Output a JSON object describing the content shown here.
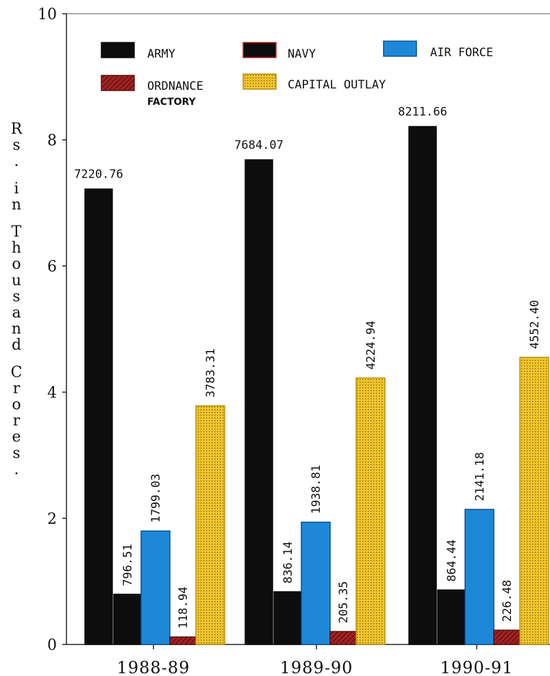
{
  "chart_data": {
    "type": "bar",
    "ylabel": "Rs. in Thousand Crores.",
    "ylim": [
      0,
      10
    ],
    "yticks": [
      "0",
      "2",
      "4",
      "6",
      "8",
      "10"
    ],
    "categories": [
      "1988-89",
      "1989-90",
      "1990-91"
    ],
    "grid": false,
    "legend_placement": "top",
    "series": [
      {
        "name": "ARMY",
        "color": "#0d0d0d",
        "pattern": "solid",
        "values": [
          7220.76,
          7684.07,
          8211.66
        ],
        "labels": [
          "7220.76",
          "7684.07",
          "8211.66"
        ]
      },
      {
        "name": "NAVY",
        "color": "#0d0d0d",
        "pattern": "solid",
        "values": [
          796.51,
          836.14,
          864.44
        ],
        "labels": [
          "796.51",
          "836.14",
          "864.44"
        ]
      },
      {
        "name": "AIR FORCE",
        "color": "#1e88d8",
        "pattern": "solid",
        "values": [
          1799.03,
          1938.81,
          2141.18
        ],
        "labels": [
          "1799.03",
          "1938.81",
          "2141.18"
        ]
      },
      {
        "name": "ORDNANCE",
        "subname": "FACTORY",
        "color": "#8b1a1a",
        "pattern": "hatch",
        "values": [
          118.94,
          205.35,
          226.48
        ],
        "labels": [
          "118.94",
          "205.35",
          "226.48"
        ]
      },
      {
        "name": "CAPITAL OUTLAY",
        "color": "#f2c52c",
        "pattern": "dots",
        "values": [
          3783.31,
          4224.94,
          4552.4
        ],
        "labels": [
          "3783.31",
          "4224.94",
          "4552.40"
        ]
      }
    ]
  }
}
